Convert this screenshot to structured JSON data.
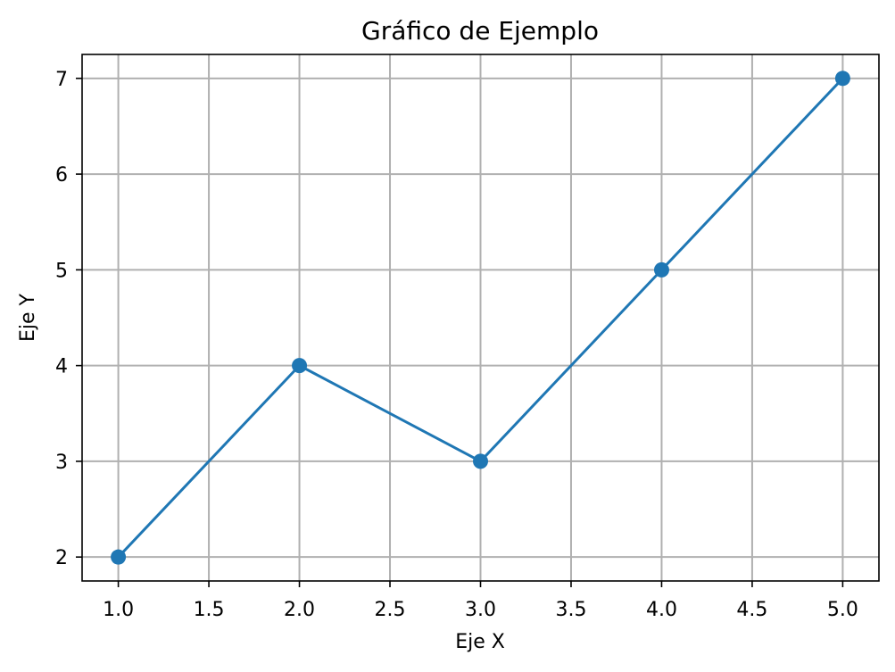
{
  "chart_data": {
    "type": "line",
    "title": "Gráfico de Ejemplo",
    "xlabel": "Eje X",
    "ylabel": "Eje Y",
    "x": [
      1,
      2,
      3,
      4,
      5
    ],
    "series": [
      {
        "values": [
          2,
          4,
          3,
          5,
          7
        ],
        "color": "#1f77b4",
        "marker": "circle"
      }
    ],
    "xlim": [
      0.8,
      5.2
    ],
    "ylim": [
      1.75,
      7.25
    ],
    "xticks": [
      "1.0",
      "1.5",
      "2.0",
      "2.5",
      "3.0",
      "3.5",
      "4.0",
      "4.5",
      "5.0"
    ],
    "yticks": [
      "2",
      "3",
      "4",
      "5",
      "6",
      "7"
    ],
    "grid": true
  }
}
